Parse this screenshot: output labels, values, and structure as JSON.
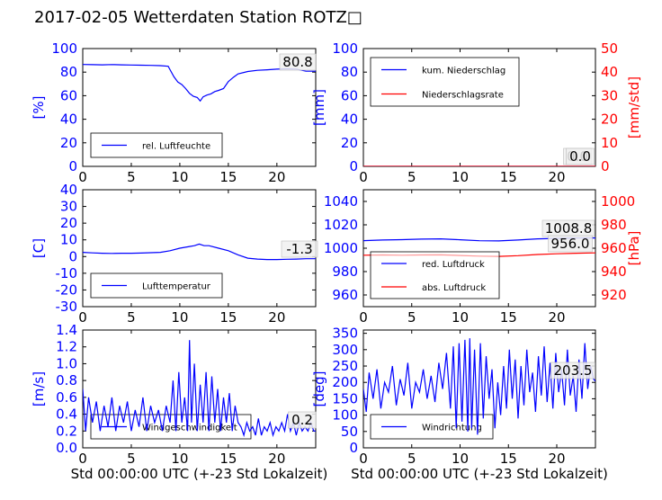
{
  "figure": {
    "title": "2017-02-05 Wetterdaten Station ROTZ□"
  },
  "colors": {
    "blue": "#0000ff",
    "red": "#ff0000",
    "black": "#000000"
  },
  "chart_data": [
    {
      "id": "humidity",
      "type": "line",
      "ylabel": "[%]",
      "xlabel": "",
      "xlim": [
        0,
        24
      ],
      "ylim": [
        0,
        100
      ],
      "xticks": [
        0,
        5,
        10,
        15,
        20
      ],
      "yticks": [
        0,
        20,
        40,
        60,
        80,
        100
      ],
      "grid": false,
      "legend_position": "lower-left",
      "annotation": "80.8",
      "series": [
        {
          "name": "rel. Luftfeuchte",
          "color": "#0000ff",
          "x": [
            0,
            1,
            2,
            3,
            4,
            5,
            6,
            7,
            8,
            8.8,
            9.0,
            9.4,
            9.8,
            10.2,
            10.6,
            11.0,
            11.4,
            11.8,
            12.1,
            12.4,
            12.8,
            13.2,
            13.6,
            14.0,
            14.5,
            15.0,
            15.5,
            16.0,
            17,
            18,
            19,
            20,
            21,
            22,
            23,
            24
          ],
          "y": [
            86.5,
            86.3,
            86.2,
            86.4,
            86.2,
            86.0,
            85.9,
            85.7,
            85.5,
            85.0,
            82.0,
            76.0,
            71.5,
            69.5,
            66.0,
            62.0,
            59.5,
            58.5,
            55.5,
            59.0,
            60.5,
            61.5,
            63.5,
            64.5,
            66.0,
            72.0,
            75.5,
            78.5,
            80.5,
            81.5,
            82.0,
            82.5,
            82.8,
            82.6,
            80.8,
            80.8
          ]
        }
      ]
    },
    {
      "id": "precipitation",
      "type": "line",
      "ylabel": "[mm]",
      "y2label": "[mm/std]",
      "xlabel": "",
      "xlim": [
        0,
        24
      ],
      "ylim": [
        0,
        100
      ],
      "y2lim": [
        0,
        50
      ],
      "xticks": [
        0,
        5,
        10,
        15,
        20
      ],
      "yticks": [
        0,
        20,
        40,
        60,
        80,
        100
      ],
      "y2ticks": [
        0,
        10,
        20,
        30,
        40,
        50
      ],
      "grid": false,
      "legend_position": "upper-left",
      "annotation": "0.0",
      "annotation2": "0.0",
      "series": [
        {
          "name": "kum. Niederschlag",
          "axis": "left",
          "color": "#0000ff",
          "x": [
            0,
            24
          ],
          "y": [
            0,
            0
          ]
        },
        {
          "name": "Niederschlagsrate",
          "axis": "right",
          "color": "#ff0000",
          "x": [
            0,
            24
          ],
          "y": [
            0,
            0
          ]
        }
      ]
    },
    {
      "id": "temperature",
      "type": "line",
      "ylabel": "[C]",
      "xlabel": "",
      "xlim": [
        0,
        24
      ],
      "ylim": [
        -30,
        40
      ],
      "xticks": [
        0,
        5,
        10,
        15,
        20
      ],
      "yticks": [
        -30,
        -20,
        -10,
        0,
        10,
        20,
        30,
        40
      ],
      "grid": false,
      "legend_position": "lower-left",
      "annotation": "-1.3",
      "series": [
        {
          "name": "Lufttemperatur",
          "color": "#0000ff",
          "x": [
            0,
            1,
            2,
            3,
            4,
            5,
            6,
            7,
            8,
            9,
            10,
            11,
            11.5,
            12,
            12.5,
            13,
            14,
            15,
            16,
            17,
            18,
            19,
            20,
            21,
            22,
            23,
            24
          ],
          "y": [
            2.5,
            2.2,
            2.0,
            1.9,
            2.0,
            2.0,
            2.1,
            2.3,
            2.5,
            3.5,
            5.0,
            6.0,
            6.5,
            7.5,
            6.5,
            6.5,
            5.0,
            3.5,
            1.0,
            -1.0,
            -1.5,
            -1.8,
            -1.8,
            -1.6,
            -1.5,
            -1.3,
            -1.3
          ]
        }
      ]
    },
    {
      "id": "pressure",
      "type": "line",
      "ylabel": "",
      "y2label": "[hPa]",
      "xlabel": "",
      "xlim": [
        0,
        24
      ],
      "ylim": [
        950,
        1050
      ],
      "y2lim": [
        910,
        1010
      ],
      "xticks": [
        0,
        5,
        10,
        15,
        20
      ],
      "yticks": [
        960,
        980,
        1000,
        1020,
        1040
      ],
      "y2ticks": [
        920,
        940,
        960,
        980,
        1000
      ],
      "grid": false,
      "legend_position": "lower-left",
      "annotation": "1008.8",
      "annotation2": "956.0",
      "series": [
        {
          "name": "red. Luftdruck",
          "axis": "left",
          "color": "#0000ff",
          "x": [
            0,
            2,
            4,
            6,
            8,
            10,
            12,
            14,
            16,
            18,
            20,
            22,
            24
          ],
          "y": [
            1006.5,
            1007.0,
            1007.3,
            1007.8,
            1008.0,
            1007.2,
            1006.4,
            1006.2,
            1007.0,
            1008.0,
            1008.4,
            1008.7,
            1008.8
          ]
        },
        {
          "name": "abs. Luftdruck",
          "axis": "right",
          "color": "#ff0000",
          "x": [
            0,
            2,
            4,
            6,
            8,
            10,
            12,
            14,
            16,
            18,
            20,
            22,
            24
          ],
          "y": [
            954.0,
            954.2,
            954.0,
            954.2,
            954.3,
            953.8,
            953.2,
            953.0,
            953.6,
            954.6,
            955.2,
            955.7,
            956.0
          ]
        }
      ]
    },
    {
      "id": "windspeed",
      "type": "line",
      "ylabel": "[m/s]",
      "xlabel": "Std 00:00:00 UTC (+-23 Std Lokalzeit)",
      "xlim": [
        0,
        24
      ],
      "ylim": [
        0,
        1.4
      ],
      "xticks": [
        0,
        5,
        10,
        15,
        20
      ],
      "yticks": [
        0.0,
        0.2,
        0.4,
        0.6,
        0.8,
        1.0,
        1.2,
        1.4
      ],
      "grid": false,
      "legend_position": "lower-center",
      "annotation": "0.2",
      "series": [
        {
          "name": "Windgeschwindigkeit",
          "color": "#0000ff",
          "x": [
            0,
            0.3,
            0.6,
            1.0,
            1.4,
            1.8,
            2.2,
            2.6,
            3.0,
            3.4,
            3.8,
            4.2,
            4.6,
            5.0,
            5.4,
            5.8,
            6.2,
            6.6,
            7.0,
            7.4,
            7.8,
            8.2,
            8.6,
            9.0,
            9.3,
            9.6,
            9.9,
            10.2,
            10.5,
            10.8,
            11.0,
            11.2,
            11.5,
            11.8,
            12.1,
            12.4,
            12.7,
            13.0,
            13.3,
            13.6,
            13.9,
            14.2,
            14.5,
            14.8,
            15.1,
            15.4,
            15.7,
            16.0,
            16.3,
            16.6,
            16.9,
            17.2,
            17.5,
            17.8,
            18.1,
            18.4,
            18.7,
            19.0,
            19.3,
            19.6,
            19.9,
            20.2,
            20.5,
            20.8,
            21.1,
            21.4,
            21.7,
            22.0,
            22.3,
            22.6,
            22.9,
            23.2,
            23.5,
            23.8,
            24
          ],
          "y": [
            0.7,
            0.2,
            0.6,
            0.3,
            0.55,
            0.2,
            0.5,
            0.25,
            0.6,
            0.2,
            0.5,
            0.3,
            0.55,
            0.2,
            0.45,
            0.25,
            0.6,
            0.2,
            0.5,
            0.3,
            0.45,
            0.2,
            0.5,
            0.3,
            0.8,
            0.2,
            0.9,
            0.3,
            0.6,
            0.2,
            1.28,
            0.3,
            1.0,
            0.2,
            0.75,
            0.3,
            0.9,
            0.2,
            0.85,
            0.3,
            0.7,
            0.2,
            0.6,
            0.3,
            0.65,
            0.2,
            0.5,
            0.3,
            0.25,
            0.15,
            0.3,
            0.2,
            0.25,
            0.15,
            0.35,
            0.15,
            0.25,
            0.2,
            0.3,
            0.15,
            0.25,
            0.2,
            0.3,
            0.2,
            0.4,
            0.2,
            0.3,
            0.15,
            0.3,
            0.2,
            0.25,
            0.2,
            0.3,
            0.2,
            0.2
          ]
        }
      ]
    },
    {
      "id": "winddirection",
      "type": "line",
      "ylabel": "[deg]",
      "xlabel": "Std 00:00:00 UTC (+-23 Std Lokalzeit)",
      "xlim": [
        0,
        24
      ],
      "ylim": [
        0,
        360
      ],
      "xticks": [
        0,
        5,
        10,
        15,
        20
      ],
      "yticks": [
        0,
        50,
        100,
        150,
        200,
        250,
        300,
        350
      ],
      "grid": false,
      "legend_position": "lower-left",
      "annotation": "203.5",
      "series": [
        {
          "name": "Windrichtung",
          "color": "#0000ff",
          "x": [
            0,
            0.3,
            0.6,
            1.0,
            1.4,
            1.8,
            2.2,
            2.6,
            3.0,
            3.4,
            3.8,
            4.2,
            4.6,
            5.0,
            5.4,
            5.8,
            6.2,
            6.6,
            7.0,
            7.4,
            7.8,
            8.2,
            8.6,
            9.0,
            9.3,
            9.6,
            9.9,
            10.2,
            10.5,
            10.8,
            11.0,
            11.2,
            11.5,
            11.8,
            12.1,
            12.4,
            12.7,
            13.0,
            13.3,
            13.6,
            13.9,
            14.2,
            14.5,
            14.8,
            15.1,
            15.4,
            15.7,
            16.0,
            16.3,
            16.6,
            16.9,
            17.2,
            17.5,
            17.8,
            18.1,
            18.4,
            18.7,
            19.0,
            19.3,
            19.6,
            19.9,
            20.2,
            20.5,
            20.8,
            21.1,
            21.4,
            21.7,
            22.0,
            22.3,
            22.6,
            22.9,
            23.2,
            23.5,
            23.8,
            24
          ],
          "y": [
            180,
            110,
            230,
            150,
            240,
            120,
            200,
            170,
            250,
            130,
            210,
            160,
            260,
            120,
            200,
            170,
            240,
            150,
            220,
            140,
            260,
            180,
            290,
            120,
            310,
            60,
            320,
            80,
            330,
            50,
            335,
            60,
            300,
            40,
            320,
            90,
            280,
            150,
            240,
            60,
            200,
            100,
            250,
            120,
            300,
            150,
            270,
            90,
            250,
            130,
            300,
            170,
            230,
            110,
            280,
            160,
            310,
            140,
            260,
            120,
            290,
            170,
            240,
            130,
            300,
            160,
            220,
            110,
            270,
            150,
            320,
            180,
            250,
            210,
            203.5
          ]
        }
      ]
    }
  ]
}
